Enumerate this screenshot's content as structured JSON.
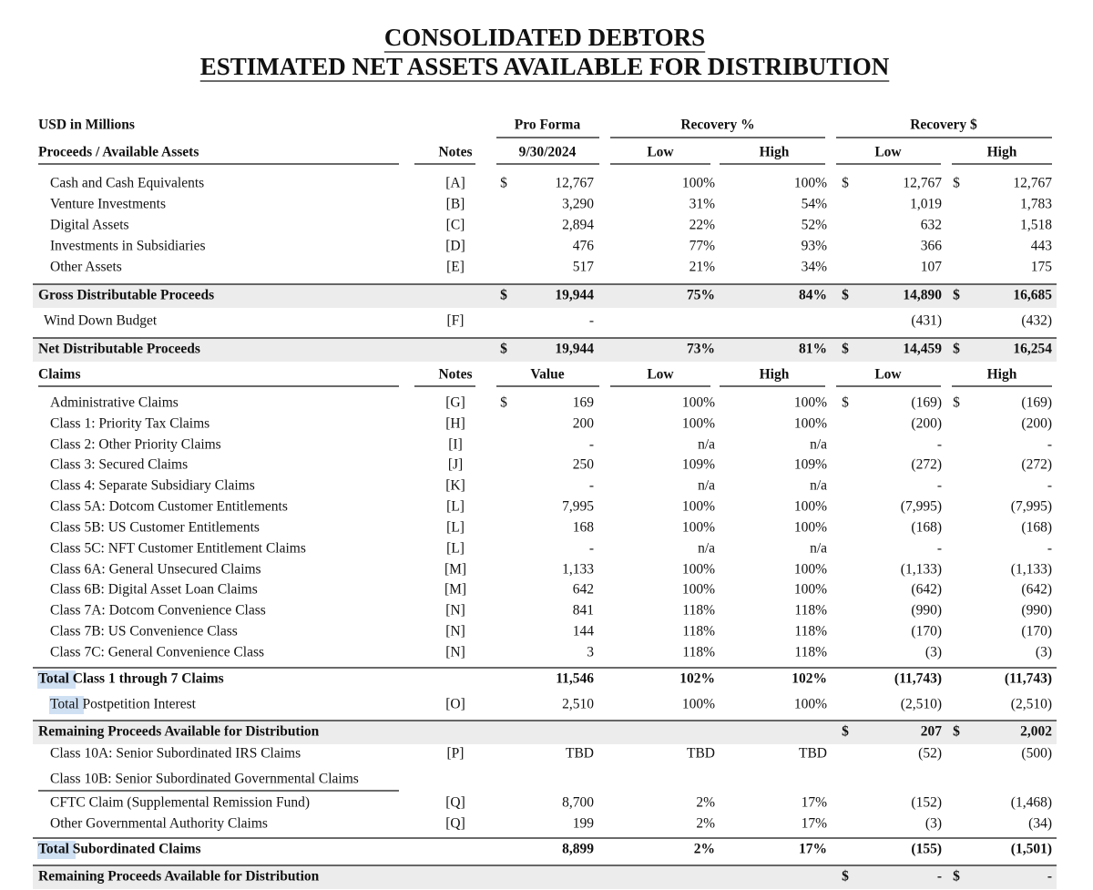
{
  "title": [
    "CONSOLIDATED DEBTORS",
    "ESTIMATED NET ASSETS AVAILABLE FOR DISTRIBUTION"
  ],
  "top_header": {
    "label": "USD in Millions",
    "pro_forma": "Pro Forma",
    "recovery_pct": "Recovery %",
    "recovery_usd": "Recovery $"
  },
  "rows": [
    {
      "kind": "header",
      "label": "Proceeds / Available Assets",
      "note": "Notes",
      "value": "9/30/2024",
      "low_pct": "Low",
      "high_pct": "High",
      "low": "Low",
      "high": "High"
    },
    {
      "kind": "item",
      "label": "Cash and Cash Equivalents",
      "note": "[A]",
      "cur1": "$",
      "value": "12,767",
      "low_pct": "100%",
      "high_pct": "100%",
      "cur2": "$",
      "low": "12,767",
      "cur3": "$",
      "high": "12,767"
    },
    {
      "kind": "item",
      "label": "Venture Investments",
      "note": "[B]",
      "value": "3,290",
      "low_pct": "31%",
      "high_pct": "54%",
      "low": "1,019",
      "high": "1,783"
    },
    {
      "kind": "item",
      "label": "Digital Assets",
      "note": "[C]",
      "value": "2,894",
      "low_pct": "22%",
      "high_pct": "52%",
      "low": "632",
      "high": "1,518"
    },
    {
      "kind": "item",
      "label": "Investments in Subsidiaries",
      "note": "[D]",
      "value": "476",
      "low_pct": "77%",
      "high_pct": "93%",
      "low": "366",
      "high": "443"
    },
    {
      "kind": "item",
      "label": "Other Assets",
      "note": "[E]",
      "value": "517",
      "low_pct": "21%",
      "high_pct": "34%",
      "low": "107",
      "high": "175"
    },
    {
      "kind": "total",
      "label": "Gross Distributable Proceeds",
      "cur1": "$",
      "value": "19,944",
      "low_pct": "75%",
      "high_pct": "84%",
      "cur2": "$",
      "low": "14,890",
      "cur3": "$",
      "high": "16,685"
    },
    {
      "kind": "item",
      "label": "Wind Down Budget",
      "note": "[F]",
      "value": "-",
      "low": "(431)",
      "high": "(432)"
    },
    {
      "kind": "total",
      "label": "Net Distributable Proceeds",
      "cur1": "$",
      "value": "19,944",
      "low_pct": "73%",
      "high_pct": "81%",
      "cur2": "$",
      "low": "14,459",
      "cur3": "$",
      "high": "16,254"
    },
    {
      "kind": "header",
      "label": "Claims",
      "note": "Notes",
      "value": "Value",
      "low_pct": "Low",
      "high_pct": "High",
      "low": "Low",
      "high": "High"
    },
    {
      "kind": "item",
      "label": "Administrative Claims",
      "note": "[G]",
      "cur1": "$",
      "value": "169",
      "low_pct": "100%",
      "high_pct": "100%",
      "cur2": "$",
      "low": "(169)",
      "cur3": "$",
      "high": "(169)"
    },
    {
      "kind": "item",
      "label": "Class 1: Priority Tax Claims",
      "note": "[H]",
      "value": "200",
      "low_pct": "100%",
      "high_pct": "100%",
      "low": "(200)",
      "high": "(200)"
    },
    {
      "kind": "item",
      "label": "Class 2: Other Priority Claims",
      "note": "[I]",
      "value": "-",
      "low_pct": "n/a",
      "high_pct": "n/a",
      "low": "-",
      "high": "-"
    },
    {
      "kind": "item",
      "label": "Class 3: Secured Claims",
      "note": "[J]",
      "value": "250",
      "low_pct": "109%",
      "high_pct": "109%",
      "low": "(272)",
      "high": "(272)"
    },
    {
      "kind": "item",
      "label": "Class 4: Separate Subsidiary Claims",
      "note": "[K]",
      "value": "-",
      "low_pct": "n/a",
      "high_pct": "n/a",
      "low": "-",
      "high": "-"
    },
    {
      "kind": "item",
      "label": "Class 5A: Dotcom Customer Entitlements",
      "note": "[L]",
      "value": "7,995",
      "low_pct": "100%",
      "high_pct": "100%",
      "low": "(7,995)",
      "high": "(7,995)"
    },
    {
      "kind": "item",
      "label": "Class 5B: US Customer Entitlements",
      "note": "[L]",
      "value": "168",
      "low_pct": "100%",
      "high_pct": "100%",
      "low": "(168)",
      "high": "(168)"
    },
    {
      "kind": "item",
      "label": "Class 5C: NFT Customer Entitlement Claims",
      "note": "[L]",
      "value": "-",
      "low_pct": "n/a",
      "high_pct": "n/a",
      "low": "-",
      "high": "-"
    },
    {
      "kind": "item",
      "label": "Class 6A: General Unsecured Claims",
      "note": "[M]",
      "value": "1,133",
      "low_pct": "100%",
      "high_pct": "100%",
      "low": "(1,133)",
      "high": "(1,133)"
    },
    {
      "kind": "item",
      "label": "Class 6B: Digital Asset Loan Claims",
      "note": "[M]",
      "value": "642",
      "low_pct": "100%",
      "high_pct": "100%",
      "low": "(642)",
      "high": "(642)"
    },
    {
      "kind": "item",
      "label": "Class 7A: Dotcom Convenience Class",
      "note": "[N]",
      "value": "841",
      "low_pct": "118%",
      "high_pct": "118%",
      "low": "(990)",
      "high": "(990)"
    },
    {
      "kind": "item",
      "label": "Class 7B: US Convenience Class",
      "note": "[N]",
      "value": "144",
      "low_pct": "118%",
      "high_pct": "118%",
      "low": "(170)",
      "high": "(170)"
    },
    {
      "kind": "item",
      "label": "Class 7C: General Convenience Class",
      "note": "[N]",
      "value": "3",
      "low_pct": "118%",
      "high_pct": "118%",
      "low": "(3)",
      "high": "(3)"
    },
    {
      "kind": "subtotal",
      "label": "Total Class 1 through 7 Claims",
      "value": "11,546",
      "low_pct": "102%",
      "high_pct": "102%",
      "low": "(11,743)",
      "high": "(11,743)"
    },
    {
      "kind": "item",
      "label": "Total Postpetition Interest",
      "note": "[O]",
      "value": "2,510",
      "low_pct": "100%",
      "high_pct": "100%",
      "low": "(2,510)",
      "high": "(2,510)"
    },
    {
      "kind": "total",
      "label": "Remaining Proceeds Available for Distribution",
      "cur2": "$",
      "low": "207",
      "cur3": "$",
      "high": "2,002"
    },
    {
      "kind": "item",
      "label": "Class 10A: Senior Subordinated IRS Claims",
      "note": "[P]",
      "value": "TBD",
      "low_pct": "TBD",
      "high_pct": "TBD",
      "low": "(52)",
      "high": "(500)"
    },
    {
      "kind": "item",
      "label": "Class 10B: Senior Subordinated Governmental Claims"
    },
    {
      "kind": "item",
      "label": "CFTC Claim (Supplemental Remission Fund)",
      "note": "[Q]",
      "value": "8,700",
      "low_pct": "2%",
      "high_pct": "17%",
      "low": "(152)",
      "high": "(1,468)"
    },
    {
      "kind": "item",
      "label": "Other Governmental Authority Claims",
      "note": "[Q]",
      "value": "199",
      "low_pct": "2%",
      "high_pct": "17%",
      "low": "(3)",
      "high": "(34)"
    },
    {
      "kind": "subtotal",
      "label": "Total Subordinated Claims",
      "value": "8,899",
      "low_pct": "2%",
      "high_pct": "17%",
      "low": "(155)",
      "high": "(1,501)"
    },
    {
      "kind": "total",
      "label": "Remaining Proceeds Available for Distribution",
      "cur2": "$",
      "low": "-",
      "cur3": "$",
      "high": "-"
    }
  ]
}
